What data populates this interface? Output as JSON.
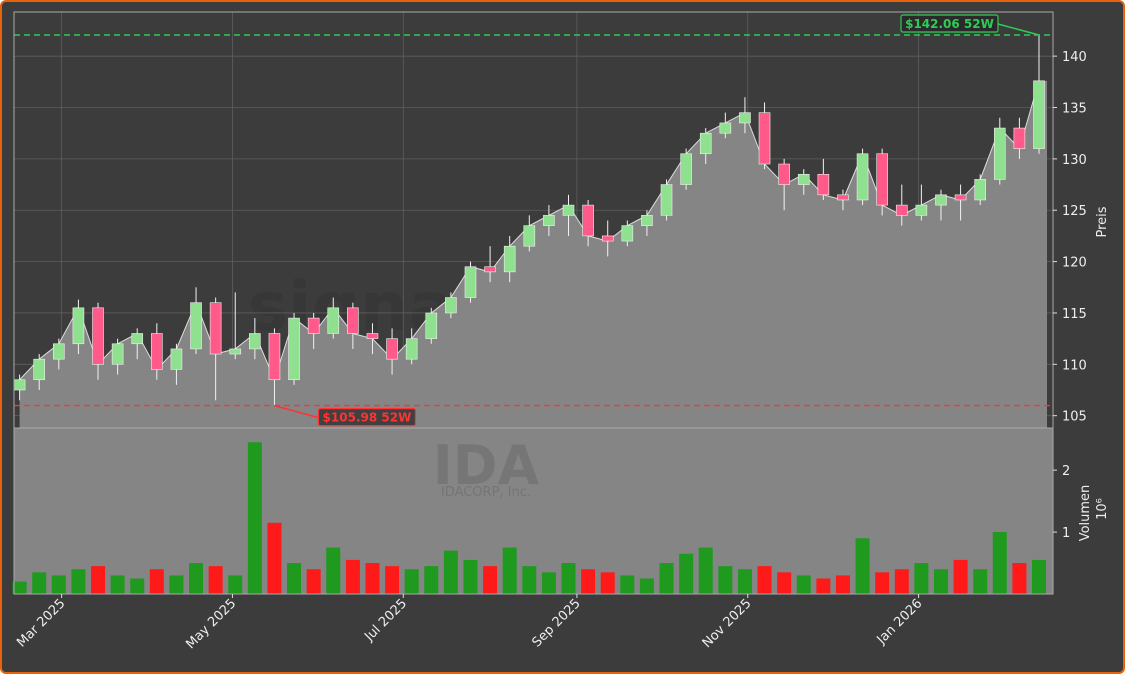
{
  "chart_data": {
    "type": "candlestick",
    "x": [
      "2025-02-14",
      "2025-02-21",
      "2025-02-28",
      "2025-03-07",
      "2025-03-14",
      "2025-03-21",
      "2025-03-28",
      "2025-04-04",
      "2025-04-11",
      "2025-04-18",
      "2025-04-25",
      "2025-05-02",
      "2025-05-09",
      "2025-05-16",
      "2025-05-23",
      "2025-05-30",
      "2025-06-06",
      "2025-06-13",
      "2025-06-20",
      "2025-06-27",
      "2025-07-04",
      "2025-07-11",
      "2025-07-18",
      "2025-07-25",
      "2025-08-01",
      "2025-08-08",
      "2025-08-15",
      "2025-08-22",
      "2025-08-29",
      "2025-09-05",
      "2025-09-12",
      "2025-09-19",
      "2025-09-26",
      "2025-10-03",
      "2025-10-10",
      "2025-10-17",
      "2025-10-24",
      "2025-10-31",
      "2025-11-07",
      "2025-11-14",
      "2025-11-21",
      "2025-11-28",
      "2025-12-05",
      "2025-12-12",
      "2025-12-19",
      "2025-12-26",
      "2026-01-02",
      "2026-01-09",
      "2026-01-16",
      "2026-01-23",
      "2026-01-30",
      "2026-02-06",
      "2026-02-13"
    ],
    "open": [
      107.5,
      108.5,
      110.5,
      112,
      115.5,
      110,
      112,
      113,
      109.5,
      111.5,
      116,
      111,
      111.5,
      113,
      108.5,
      114.5,
      113,
      115.5,
      113,
      112.5,
      110.5,
      112.5,
      115,
      116.5,
      119.5,
      119,
      121.5,
      123.5,
      124.5,
      125.5,
      122.5,
      122,
      123.5,
      124.5,
      127.5,
      130.5,
      132.5,
      133.5,
      134.5,
      129.5,
      127.5,
      128.5,
      126.5,
      126,
      130.5,
      125.5,
      124.5,
      125.5,
      126.5,
      126,
      128,
      133,
      131
    ],
    "high": [
      109,
      111,
      112.5,
      116.3,
      116,
      112.5,
      113.5,
      114,
      112,
      117.5,
      116.5,
      117,
      114.5,
      113.5,
      115,
      115,
      116.5,
      116,
      114,
      113.5,
      113.5,
      115.5,
      117,
      120,
      121.5,
      122.5,
      124.5,
      125.5,
      126.5,
      126,
      124,
      124,
      125,
      128,
      131,
      133,
      134.5,
      136,
      135.5,
      130,
      129,
      130,
      127,
      131,
      131,
      127.5,
      127.5,
      127,
      127.5,
      128.5,
      134,
      134,
      142.06
    ],
    "low": [
      106.5,
      107.5,
      109.5,
      111,
      108.5,
      109,
      110.5,
      108.5,
      108,
      111,
      106.5,
      110.5,
      110.5,
      105.98,
      108,
      111.5,
      112.5,
      111.5,
      111,
      109,
      110,
      112,
      114.5,
      116,
      118,
      118,
      121,
      122.5,
      122.5,
      121.5,
      120.5,
      121.5,
      122.5,
      124,
      127,
      129.5,
      132,
      132.5,
      129,
      125,
      126.5,
      126,
      125,
      125.5,
      124.5,
      123.5,
      124,
      124,
      124,
      125.5,
      127.5,
      130,
      130.5
    ],
    "close": [
      108.5,
      110.5,
      112,
      115.5,
      110,
      112,
      113,
      109.5,
      111.5,
      116,
      111,
      111.5,
      113,
      108.5,
      114.5,
      113,
      115.5,
      113,
      112.5,
      110.5,
      112.5,
      115,
      116.5,
      119.5,
      119,
      121.5,
      123.5,
      124.5,
      125.5,
      122.5,
      122,
      123.5,
      124.5,
      127.5,
      130.5,
      132.5,
      133.5,
      134.5,
      129.5,
      127.5,
      128.5,
      126.5,
      126,
      130.5,
      125.5,
      124.5,
      125.5,
      126.5,
      126,
      128,
      133,
      131,
      137.6
    ],
    "volume": [
      0.2,
      0.35,
      0.3,
      0.4,
      0.45,
      0.3,
      0.25,
      0.4,
      0.3,
      0.5,
      0.45,
      0.3,
      2.45,
      1.15,
      0.5,
      0.4,
      0.75,
      0.55,
      0.5,
      0.45,
      0.4,
      0.45,
      0.7,
      0.55,
      0.45,
      0.75,
      0.45,
      0.35,
      0.5,
      0.4,
      0.35,
      0.3,
      0.25,
      0.5,
      0.65,
      0.75,
      0.45,
      0.4,
      0.45,
      0.35,
      0.3,
      0.25,
      0.3,
      0.9,
      0.35,
      0.4,
      0.5,
      0.4,
      0.55,
      0.4,
      1.0,
      0.5,
      0.55
    ],
    "up_color": "#8fe08f",
    "down_color": "#ff5a8a",
    "volume_up_color": "#1f9a1f",
    "volume_down_color": "#ff1a1a",
    "area_color": "#858585",
    "xlim": [
      "2025-02-12",
      "2026-02-18"
    ],
    "xticks": [
      {
        "value": "2025-03-01",
        "label": "Mar 2025"
      },
      {
        "value": "2025-05-01",
        "label": "May 2025"
      },
      {
        "value": "2025-07-01",
        "label": "Jul 2025"
      },
      {
        "value": "2025-09-01",
        "label": "Sep 2025"
      },
      {
        "value": "2025-11-01",
        "label": "Nov 2025"
      },
      {
        "value": "2026-01-01",
        "label": "Jan 2026"
      }
    ],
    "ylim": [
      103.8,
      144.3
    ],
    "yticks": [
      105,
      110,
      115,
      120,
      125,
      130,
      135,
      140
    ],
    "ylabel": "Preis",
    "volume_ylim": [
      0,
      2.68
    ],
    "volume_yticks": [
      1,
      2
    ],
    "volume_ylabel": "Volumen",
    "volume_unit": "10⁶",
    "grid": true,
    "high_52w": {
      "value": 142.06,
      "date": "2026-02-13",
      "label": "$142.06 52W",
      "color": "#2ecc55"
    },
    "low_52w": {
      "value": 105.98,
      "date": "2025-05-16",
      "label": "$105.98 52W",
      "color": "#ff3333"
    },
    "watermark": "signale.trade",
    "ticker": "IDA",
    "company": "IDACORP, Inc."
  }
}
